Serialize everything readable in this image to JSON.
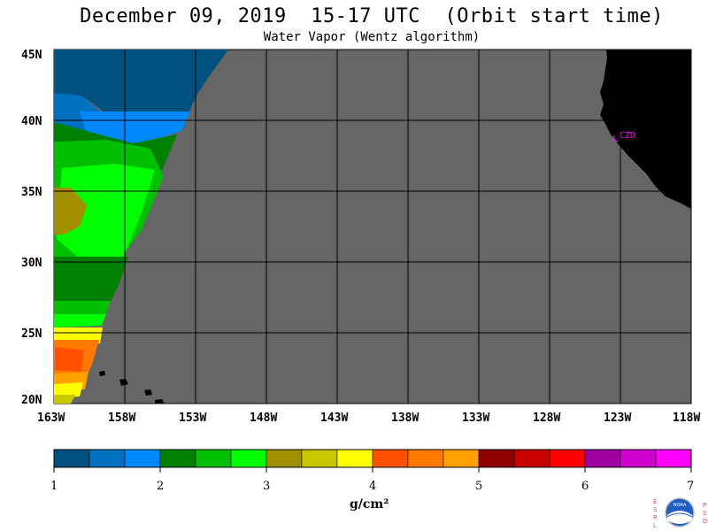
{
  "title": "December 09, 2019  15-17 UTC  (Orbit start time)",
  "subtitle": "Water Vapor (Wentz algorithm)",
  "map": {
    "lat_labels": [
      "45N",
      "40N",
      "35N",
      "30N",
      "25N",
      "20N"
    ],
    "lon_labels": [
      "163W",
      "158W",
      "153W",
      "148W",
      "143W",
      "138W",
      "133W",
      "128W",
      "123W",
      "118W"
    ],
    "city_label": "CZD",
    "colors": {
      "nodata": "#666666",
      "land": "#000000",
      "grid": "#000000",
      "city": "#ff00ff"
    }
  },
  "colorbar": {
    "colors": [
      "#005080",
      "#0070c0",
      "#0088ff",
      "#008000",
      "#00c000",
      "#00ff00",
      "#a09000",
      "#c8c800",
      "#ffff00",
      "#ff5000",
      "#ff7800",
      "#ffa000",
      "#900000",
      "#c80000",
      "#ff0000",
      "#a000a0",
      "#d000d0",
      "#ff00ff"
    ],
    "tick_labels": [
      "1",
      "2",
      "3",
      "4",
      "5",
      "6",
      "7"
    ],
    "units": "g/cm²"
  },
  "logo": {
    "left_letters": "ESRL",
    "right_letters": "PSD",
    "center_text": "NOAA"
  }
}
